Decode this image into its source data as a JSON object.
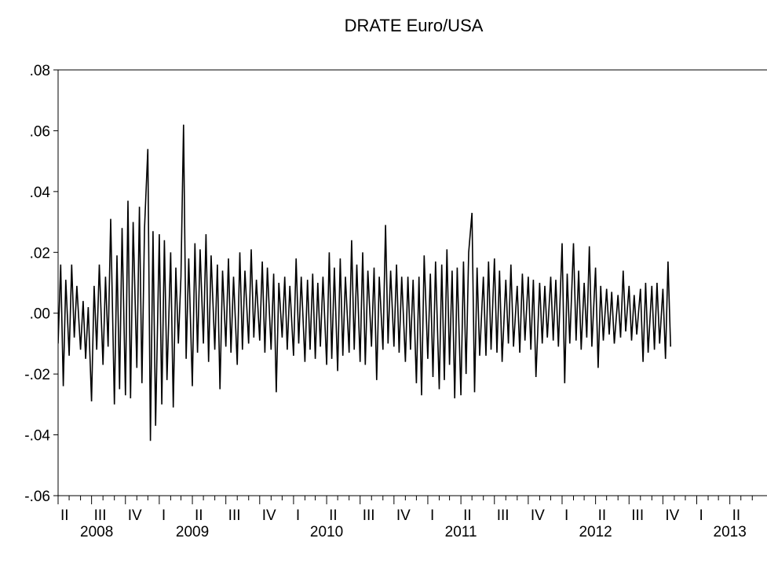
{
  "chart_data": {
    "type": "line",
    "title": "DRATE Euro/USA",
    "xlabel": "",
    "ylabel": "",
    "ylim": [
      -0.06,
      0.08
    ],
    "y_ticks": [
      {
        "value": 0.08,
        "label": ".08"
      },
      {
        "value": 0.06,
        "label": ".06"
      },
      {
        "value": 0.04,
        "label": ".04"
      },
      {
        "value": 0.02,
        "label": ".02"
      },
      {
        "value": 0.0,
        "label": ".00"
      },
      {
        "value": -0.02,
        "label": "-.02"
      },
      {
        "value": -0.04,
        "label": "-.04"
      },
      {
        "value": -0.06,
        "label": "-.06"
      }
    ],
    "x_range": [
      "2008-04-01",
      "2013-06-30"
    ],
    "quarter_ticks": [
      {
        "date": "2008-04-01",
        "label": "II"
      },
      {
        "date": "2008-07-01",
        "label": "III"
      },
      {
        "date": "2008-10-01",
        "label": "IV"
      },
      {
        "date": "2009-01-01",
        "label": "I"
      },
      {
        "date": "2009-04-01",
        "label": "II"
      },
      {
        "date": "2009-07-01",
        "label": "III"
      },
      {
        "date": "2009-10-01",
        "label": "IV"
      },
      {
        "date": "2010-01-01",
        "label": "I"
      },
      {
        "date": "2010-04-01",
        "label": "II"
      },
      {
        "date": "2010-07-01",
        "label": "III"
      },
      {
        "date": "2010-10-01",
        "label": "IV"
      },
      {
        "date": "2011-01-01",
        "label": "I"
      },
      {
        "date": "2011-04-01",
        "label": "II"
      },
      {
        "date": "2011-07-01",
        "label": "III"
      },
      {
        "date": "2011-10-01",
        "label": "IV"
      },
      {
        "date": "2012-01-01",
        "label": "I"
      },
      {
        "date": "2012-04-01",
        "label": "II"
      },
      {
        "date": "2012-07-01",
        "label": "III"
      },
      {
        "date": "2012-10-01",
        "label": "IV"
      },
      {
        "date": "2013-01-01",
        "label": "I"
      },
      {
        "date": "2013-04-01",
        "label": "II"
      }
    ],
    "year_labels": [
      {
        "date": "2008-07-15",
        "label": "2008"
      },
      {
        "date": "2009-04-01",
        "label": "2009"
      },
      {
        "date": "2010-04-01",
        "label": "2010"
      },
      {
        "date": "2011-04-01",
        "label": "2011"
      },
      {
        "date": "2012-04-01",
        "label": "2012"
      },
      {
        "date": "2013-04-01",
        "label": "2013"
      }
    ],
    "series": [
      {
        "points": [
          [
            "2008-04-01",
            -0.01
          ],
          [
            "2008-04-08",
            0.016
          ],
          [
            "2008-04-15",
            -0.024
          ],
          [
            "2008-04-22",
            0.011
          ],
          [
            "2008-05-01",
            -0.014
          ],
          [
            "2008-05-08",
            0.016
          ],
          [
            "2008-05-15",
            -0.008
          ],
          [
            "2008-05-22",
            0.009
          ],
          [
            "2008-06-01",
            -0.012
          ],
          [
            "2008-06-08",
            0.004
          ],
          [
            "2008-06-15",
            -0.015
          ],
          [
            "2008-06-22",
            0.002
          ],
          [
            "2008-07-01",
            -0.029
          ],
          [
            "2008-07-08",
            0.009
          ],
          [
            "2008-07-15",
            -0.012
          ],
          [
            "2008-07-22",
            0.016
          ],
          [
            "2008-08-01",
            -0.017
          ],
          [
            "2008-08-08",
            0.012
          ],
          [
            "2008-08-15",
            -0.011
          ],
          [
            "2008-08-22",
            0.031
          ],
          [
            "2008-09-01",
            -0.03
          ],
          [
            "2008-09-08",
            0.019
          ],
          [
            "2008-09-15",
            -0.025
          ],
          [
            "2008-09-22",
            0.028
          ],
          [
            "2008-10-01",
            -0.027
          ],
          [
            "2008-10-08",
            0.037
          ],
          [
            "2008-10-15",
            -0.028
          ],
          [
            "2008-10-22",
            0.03
          ],
          [
            "2008-11-01",
            -0.018
          ],
          [
            "2008-11-08",
            0.035
          ],
          [
            "2008-11-15",
            -0.023
          ],
          [
            "2008-11-22",
            0.028
          ],
          [
            "2008-12-01",
            0.054
          ],
          [
            "2008-12-08",
            -0.042
          ],
          [
            "2008-12-15",
            0.027
          ],
          [
            "2008-12-22",
            -0.037
          ],
          [
            "2009-01-01",
            0.026
          ],
          [
            "2009-01-08",
            -0.03
          ],
          [
            "2009-01-15",
            0.024
          ],
          [
            "2009-01-22",
            -0.022
          ],
          [
            "2009-02-01",
            0.02
          ],
          [
            "2009-02-08",
            -0.031
          ],
          [
            "2009-02-15",
            0.015
          ],
          [
            "2009-02-22",
            -0.01
          ],
          [
            "2009-03-01",
            0.012
          ],
          [
            "2009-03-08",
            0.062
          ],
          [
            "2009-03-15",
            -0.015
          ],
          [
            "2009-03-22",
            0.018
          ],
          [
            "2009-04-01",
            -0.024
          ],
          [
            "2009-04-08",
            0.023
          ],
          [
            "2009-04-15",
            -0.013
          ],
          [
            "2009-04-22",
            0.021
          ],
          [
            "2009-05-01",
            -0.01
          ],
          [
            "2009-05-08",
            0.026
          ],
          [
            "2009-05-15",
            -0.016
          ],
          [
            "2009-05-22",
            0.019
          ],
          [
            "2009-06-01",
            -0.012
          ],
          [
            "2009-06-08",
            0.016
          ],
          [
            "2009-06-15",
            -0.025
          ],
          [
            "2009-06-22",
            0.014
          ],
          [
            "2009-07-01",
            -0.011
          ],
          [
            "2009-07-08",
            0.018
          ],
          [
            "2009-07-15",
            -0.013
          ],
          [
            "2009-07-22",
            0.012
          ],
          [
            "2009-08-01",
            -0.017
          ],
          [
            "2009-08-08",
            0.02
          ],
          [
            "2009-08-15",
            -0.012
          ],
          [
            "2009-08-22",
            0.014
          ],
          [
            "2009-09-01",
            -0.01
          ],
          [
            "2009-09-08",
            0.021
          ],
          [
            "2009-09-15",
            -0.008
          ],
          [
            "2009-09-22",
            0.011
          ],
          [
            "2009-10-01",
            -0.009
          ],
          [
            "2009-10-08",
            0.017
          ],
          [
            "2009-10-15",
            -0.013
          ],
          [
            "2009-10-22",
            0.015
          ],
          [
            "2009-11-01",
            -0.012
          ],
          [
            "2009-11-08",
            0.013
          ],
          [
            "2009-11-15",
            -0.026
          ],
          [
            "2009-11-22",
            0.01
          ],
          [
            "2009-12-01",
            -0.008
          ],
          [
            "2009-12-08",
            0.012
          ],
          [
            "2009-12-15",
            -0.012
          ],
          [
            "2009-12-22",
            0.009
          ],
          [
            "2010-01-01",
            -0.014
          ],
          [
            "2010-01-08",
            0.018
          ],
          [
            "2010-01-15",
            -0.01
          ],
          [
            "2010-01-22",
            0.012
          ],
          [
            "2010-02-01",
            -0.016
          ],
          [
            "2010-02-08",
            0.011
          ],
          [
            "2010-02-15",
            -0.012
          ],
          [
            "2010-02-22",
            0.013
          ],
          [
            "2010-03-01",
            -0.015
          ],
          [
            "2010-03-08",
            0.01
          ],
          [
            "2010-03-15",
            -0.011
          ],
          [
            "2010-03-22",
            0.012
          ],
          [
            "2010-04-01",
            -0.017
          ],
          [
            "2010-04-08",
            0.02
          ],
          [
            "2010-04-15",
            -0.015
          ],
          [
            "2010-04-22",
            0.015
          ],
          [
            "2010-05-01",
            -0.019
          ],
          [
            "2010-05-08",
            0.018
          ],
          [
            "2010-05-15",
            -0.014
          ],
          [
            "2010-05-22",
            0.012
          ],
          [
            "2010-06-01",
            -0.013
          ],
          [
            "2010-06-08",
            0.024
          ],
          [
            "2010-06-15",
            -0.012
          ],
          [
            "2010-06-22",
            0.016
          ],
          [
            "2010-07-01",
            -0.016
          ],
          [
            "2010-07-08",
            0.02
          ],
          [
            "2010-07-15",
            -0.017
          ],
          [
            "2010-07-22",
            0.014
          ],
          [
            "2010-08-01",
            -0.011
          ],
          [
            "2010-08-08",
            0.015
          ],
          [
            "2010-08-15",
            -0.022
          ],
          [
            "2010-08-22",
            0.012
          ],
          [
            "2010-09-01",
            -0.012
          ],
          [
            "2010-09-08",
            0.029
          ],
          [
            "2010-09-15",
            -0.01
          ],
          [
            "2010-09-22",
            0.014
          ],
          [
            "2010-10-01",
            -0.011
          ],
          [
            "2010-10-08",
            0.016
          ],
          [
            "2010-10-15",
            -0.013
          ],
          [
            "2010-10-22",
            0.012
          ],
          [
            "2010-11-01",
            -0.016
          ],
          [
            "2010-11-08",
            0.012
          ],
          [
            "2010-11-15",
            -0.012
          ],
          [
            "2010-11-22",
            0.011
          ],
          [
            "2010-12-01",
            -0.023
          ],
          [
            "2010-12-08",
            0.012
          ],
          [
            "2010-12-15",
            -0.027
          ],
          [
            "2010-12-22",
            0.019
          ],
          [
            "2011-01-01",
            -0.015
          ],
          [
            "2011-01-08",
            0.013
          ],
          [
            "2011-01-15",
            -0.021
          ],
          [
            "2011-01-22",
            0.017
          ],
          [
            "2011-02-01",
            -0.025
          ],
          [
            "2011-02-08",
            0.016
          ],
          [
            "2011-02-15",
            -0.022
          ],
          [
            "2011-02-22",
            0.021
          ],
          [
            "2011-03-01",
            -0.017
          ],
          [
            "2011-03-08",
            0.014
          ],
          [
            "2011-03-15",
            -0.028
          ],
          [
            "2011-03-22",
            0.015
          ],
          [
            "2011-04-01",
            -0.027
          ],
          [
            "2011-04-08",
            0.017
          ],
          [
            "2011-04-15",
            -0.02
          ],
          [
            "2011-04-22",
            0.02
          ],
          [
            "2011-05-01",
            0.033
          ],
          [
            "2011-05-08",
            -0.026
          ],
          [
            "2011-05-15",
            0.015
          ],
          [
            "2011-05-22",
            -0.014
          ],
          [
            "2011-06-01",
            0.012
          ],
          [
            "2011-06-08",
            -0.014
          ],
          [
            "2011-06-15",
            0.017
          ],
          [
            "2011-06-22",
            -0.012
          ],
          [
            "2011-07-01",
            0.018
          ],
          [
            "2011-07-08",
            -0.013
          ],
          [
            "2011-07-15",
            0.014
          ],
          [
            "2011-07-22",
            -0.016
          ],
          [
            "2011-08-01",
            0.011
          ],
          [
            "2011-08-08",
            -0.01
          ],
          [
            "2011-08-15",
            0.016
          ],
          [
            "2011-08-22",
            -0.011
          ],
          [
            "2011-09-01",
            0.009
          ],
          [
            "2011-09-08",
            -0.013
          ],
          [
            "2011-09-15",
            0.013
          ],
          [
            "2011-09-22",
            -0.009
          ],
          [
            "2011-10-01",
            0.012
          ],
          [
            "2011-10-08",
            -0.012
          ],
          [
            "2011-10-15",
            0.011
          ],
          [
            "2011-10-22",
            -0.021
          ],
          [
            "2011-11-01",
            0.01
          ],
          [
            "2011-11-08",
            -0.01
          ],
          [
            "2011-11-15",
            0.009
          ],
          [
            "2011-11-22",
            -0.008
          ],
          [
            "2011-12-01",
            0.012
          ],
          [
            "2011-12-08",
            -0.009
          ],
          [
            "2011-12-15",
            0.011
          ],
          [
            "2011-12-22",
            -0.011
          ],
          [
            "2012-01-01",
            0.023
          ],
          [
            "2012-01-08",
            -0.023
          ],
          [
            "2012-01-15",
            0.013
          ],
          [
            "2012-01-22",
            -0.01
          ],
          [
            "2012-02-01",
            0.023
          ],
          [
            "2012-02-08",
            -0.009
          ],
          [
            "2012-02-15",
            0.014
          ],
          [
            "2012-02-22",
            -0.012
          ],
          [
            "2012-03-01",
            0.01
          ],
          [
            "2012-03-08",
            -0.008
          ],
          [
            "2012-03-15",
            0.022
          ],
          [
            "2012-03-22",
            -0.011
          ],
          [
            "2012-04-01",
            0.015
          ],
          [
            "2012-04-08",
            -0.018
          ],
          [
            "2012-04-15",
            0.009
          ],
          [
            "2012-04-22",
            -0.009
          ],
          [
            "2012-05-01",
            0.008
          ],
          [
            "2012-05-08",
            -0.007
          ],
          [
            "2012-05-15",
            0.007
          ],
          [
            "2012-05-22",
            -0.01
          ],
          [
            "2012-06-01",
            0.006
          ],
          [
            "2012-06-08",
            -0.008
          ],
          [
            "2012-06-15",
            0.014
          ],
          [
            "2012-06-22",
            -0.006
          ],
          [
            "2012-07-01",
            0.009
          ],
          [
            "2012-07-08",
            -0.009
          ],
          [
            "2012-07-15",
            0.006
          ],
          [
            "2012-07-22",
            -0.007
          ],
          [
            "2012-08-01",
            0.008
          ],
          [
            "2012-08-08",
            -0.016
          ],
          [
            "2012-08-15",
            0.01
          ],
          [
            "2012-08-22",
            -0.013
          ],
          [
            "2012-09-01",
            0.009
          ],
          [
            "2012-09-08",
            -0.012
          ],
          [
            "2012-09-15",
            0.01
          ],
          [
            "2012-09-22",
            -0.01
          ],
          [
            "2012-10-01",
            0.008
          ],
          [
            "2012-10-08",
            -0.015
          ],
          [
            "2012-10-15",
            0.017
          ],
          [
            "2012-10-22",
            -0.011
          ]
        ]
      }
    ]
  }
}
